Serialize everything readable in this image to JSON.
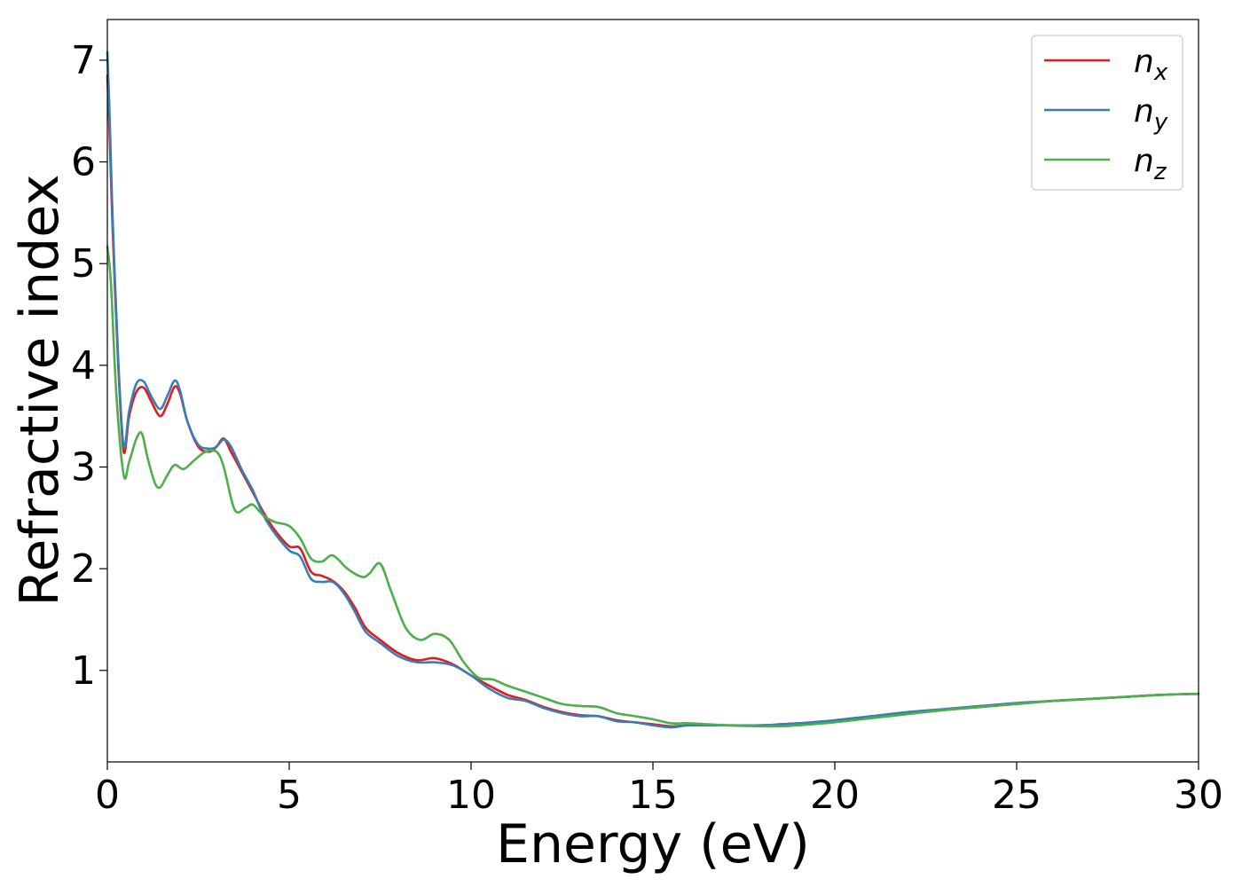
{
  "chart_data": {
    "type": "line",
    "xlabel": "Energy (eV)",
    "ylabel": "Refractive index",
    "xlim": [
      0,
      30
    ],
    "ylim": [
      0.1,
      7.4
    ],
    "xticks": [
      0,
      5,
      10,
      15,
      20,
      25,
      30
    ],
    "yticks": [
      1,
      2,
      3,
      4,
      5,
      6,
      7
    ],
    "grid": false,
    "legend_position": "top-right",
    "series": [
      {
        "name_base": "n",
        "name_sub": "x",
        "color": "#e41a1c",
        "x": [
          0,
          0.05,
          0.15,
          0.3,
          0.45,
          0.6,
          0.8,
          1.0,
          1.2,
          1.45,
          1.65,
          1.85,
          2.0,
          2.2,
          2.5,
          2.8,
          3.0,
          3.2,
          3.4,
          3.7,
          4.0,
          4.3,
          4.6,
          5.0,
          5.3,
          5.6,
          5.9,
          6.2,
          6.5,
          6.8,
          7.1,
          7.5,
          8.0,
          8.5,
          9.0,
          9.5,
          10.0,
          10.5,
          11.0,
          11.5,
          12.0,
          12.5,
          13.0,
          13.5,
          14.0,
          14.5,
          15.0,
          15.5,
          16.0,
          17.0,
          18.0,
          18.5,
          19.0,
          20.0,
          21.0,
          22.0,
          23.0,
          24.0,
          25.0,
          26.0,
          27.0,
          28.0,
          29.0,
          30.0
        ],
        "y": [
          6.85,
          6.4,
          5.3,
          4.0,
          3.15,
          3.5,
          3.74,
          3.78,
          3.65,
          3.5,
          3.62,
          3.79,
          3.72,
          3.45,
          3.2,
          3.15,
          3.2,
          3.28,
          3.15,
          2.95,
          2.75,
          2.55,
          2.38,
          2.22,
          2.2,
          1.97,
          1.93,
          1.88,
          1.78,
          1.62,
          1.42,
          1.3,
          1.17,
          1.1,
          1.12,
          1.06,
          0.95,
          0.85,
          0.76,
          0.71,
          0.64,
          0.59,
          0.56,
          0.55,
          0.51,
          0.49,
          0.47,
          0.45,
          0.46,
          0.46,
          0.46,
          0.47,
          0.48,
          0.5,
          0.54,
          0.58,
          0.61,
          0.64,
          0.67,
          0.7,
          0.72,
          0.74,
          0.76,
          0.77
        ]
      },
      {
        "name_base": "n",
        "name_sub": "y",
        "color": "#377eb8",
        "x": [
          0,
          0.05,
          0.15,
          0.3,
          0.45,
          0.6,
          0.8,
          1.0,
          1.2,
          1.45,
          1.65,
          1.85,
          2.0,
          2.2,
          2.5,
          2.8,
          3.0,
          3.2,
          3.4,
          3.7,
          4.0,
          4.3,
          4.6,
          5.0,
          5.3,
          5.6,
          5.9,
          6.2,
          6.5,
          6.8,
          7.1,
          7.5,
          8.0,
          8.5,
          9.0,
          9.5,
          10.0,
          10.5,
          11.0,
          11.5,
          12.0,
          12.5,
          13.0,
          13.5,
          14.0,
          14.5,
          15.0,
          15.5,
          16.0,
          17.0,
          18.0,
          18.5,
          19.0,
          20.0,
          21.0,
          22.0,
          23.0,
          24.0,
          25.0,
          26.0,
          27.0,
          28.0,
          29.0,
          30.0
        ],
        "y": [
          7.08,
          6.6,
          5.4,
          4.05,
          3.2,
          3.55,
          3.82,
          3.84,
          3.7,
          3.57,
          3.7,
          3.85,
          3.75,
          3.45,
          3.22,
          3.18,
          3.2,
          3.27,
          3.2,
          2.97,
          2.77,
          2.52,
          2.35,
          2.18,
          2.12,
          1.9,
          1.87,
          1.87,
          1.76,
          1.58,
          1.38,
          1.27,
          1.14,
          1.08,
          1.08,
          1.05,
          0.95,
          0.82,
          0.73,
          0.7,
          0.63,
          0.58,
          0.55,
          0.55,
          0.5,
          0.49,
          0.46,
          0.44,
          0.46,
          0.46,
          0.46,
          0.47,
          0.48,
          0.51,
          0.55,
          0.59,
          0.62,
          0.65,
          0.68,
          0.7,
          0.72,
          0.74,
          0.76,
          0.77
        ]
      },
      {
        "name_base": "n",
        "name_sub": "z",
        "color": "#4daf4a",
        "x": [
          0,
          0.1,
          0.25,
          0.45,
          0.6,
          0.8,
          0.95,
          1.1,
          1.3,
          1.45,
          1.65,
          1.85,
          2.1,
          2.4,
          2.7,
          3.0,
          3.2,
          3.5,
          3.8,
          4.0,
          4.3,
          4.6,
          5.0,
          5.3,
          5.6,
          5.9,
          6.2,
          6.6,
          7.0,
          7.2,
          7.5,
          7.8,
          8.2,
          8.6,
          9.0,
          9.4,
          9.8,
          10.2,
          10.6,
          11.0,
          11.5,
          12.0,
          12.5,
          13.0,
          13.5,
          14.0,
          14.5,
          15.0,
          15.5,
          16.0,
          17.0,
          18.0,
          18.5,
          19.0,
          20.0,
          21.0,
          22.0,
          23.0,
          24.0,
          25.0,
          26.0,
          27.0,
          28.0,
          29.0,
          30.0
        ],
        "y": [
          5.17,
          4.8,
          3.7,
          2.92,
          3.05,
          3.28,
          3.33,
          3.1,
          2.85,
          2.8,
          2.92,
          3.02,
          2.98,
          3.07,
          3.15,
          3.15,
          3.0,
          2.58,
          2.6,
          2.63,
          2.52,
          2.46,
          2.42,
          2.3,
          2.1,
          2.07,
          2.13,
          2.0,
          1.92,
          1.95,
          2.05,
          1.78,
          1.42,
          1.3,
          1.36,
          1.3,
          1.08,
          0.93,
          0.91,
          0.85,
          0.79,
          0.73,
          0.67,
          0.65,
          0.64,
          0.58,
          0.55,
          0.52,
          0.48,
          0.48,
          0.46,
          0.45,
          0.45,
          0.46,
          0.49,
          0.53,
          0.57,
          0.61,
          0.64,
          0.67,
          0.7,
          0.72,
          0.74,
          0.76,
          0.77
        ]
      }
    ]
  }
}
